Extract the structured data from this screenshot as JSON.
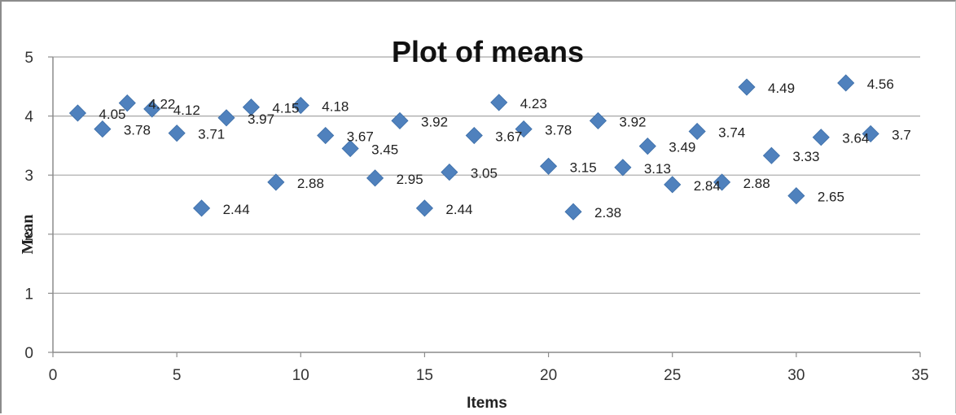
{
  "chart_data": {
    "type": "scatter",
    "title": "Plot of means",
    "xlabel": "Items",
    "ylabel": "Mean",
    "xlim": [
      0,
      35
    ],
    "ylim": [
      0,
      5
    ],
    "xticks": [
      0,
      5,
      10,
      15,
      20,
      25,
      30,
      35
    ],
    "yticks": [
      0,
      1,
      2,
      3,
      4,
      5
    ],
    "grid": "horizontal",
    "legend": "none",
    "marker_color": "#4f81bd",
    "marker": "diamond",
    "x": [
      1,
      2,
      3,
      4,
      5,
      6,
      7,
      8,
      9,
      10,
      11,
      12,
      13,
      14,
      15,
      16,
      17,
      18,
      19,
      20,
      21,
      22,
      23,
      24,
      25,
      26,
      27,
      28,
      29,
      30,
      31,
      32,
      33
    ],
    "y": [
      4.05,
      3.78,
      4.22,
      4.12,
      3.71,
      2.44,
      3.97,
      4.15,
      2.88,
      4.18,
      3.67,
      3.45,
      2.95,
      3.92,
      2.44,
      3.05,
      3.67,
      4.23,
      3.78,
      3.15,
      2.38,
      3.92,
      3.13,
      3.49,
      2.84,
      3.74,
      2.88,
      4.49,
      3.33,
      2.65,
      3.64,
      4.56,
      3.7
    ],
    "data_labels": [
      "4.05",
      "3.78",
      "4.22",
      "4.12",
      "3.71",
      "2.44",
      "3.97",
      "4.15",
      "2.88",
      "4.18",
      "3.67",
      "3.45",
      "2.95",
      "3.92",
      "2.44",
      "3.05",
      "3.67",
      "4.23",
      "3.78",
      "3.15",
      "2.38",
      "3.92",
      "3.13",
      "3.49",
      "2.84",
      "3.74",
      "2.88",
      "4.49",
      "3.33",
      "2.65",
      "3.64",
      "4.56",
      "3.7"
    ]
  }
}
